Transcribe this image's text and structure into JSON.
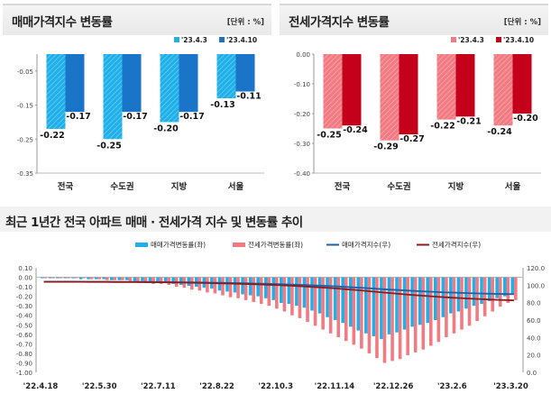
{
  "panels": {
    "left": {
      "title": "매매가격지수 변동률",
      "unit": "[단위 : %]"
    },
    "right": {
      "title": "전세가격지수 변동률",
      "unit": "[단위 : %]"
    }
  },
  "bottom_title": "최근 1년간 전국 아파트 매매 · 전세가격 지수 및 변동률 추이",
  "colors": {
    "sale_prev": "#1fb0ea",
    "sale_curr": "#1a74c8",
    "jeonse_prev": "#f27a82",
    "jeonse_curr": "#c4001a",
    "sale_index_line": "#1f5fa6",
    "jeonse_index_line": "#8b1c1c"
  },
  "chart_data": [
    {
      "type": "bar",
      "title": "매매가격지수 변동률",
      "unit": "[단위 : %]",
      "categories": [
        "전국",
        "수도권",
        "지방",
        "서울"
      ],
      "series": [
        {
          "name": "'23.4.3",
          "values": [
            -0.22,
            -0.25,
            -0.2,
            -0.13
          ]
        },
        {
          "name": "'23.4.10",
          "values": [
            -0.17,
            -0.17,
            -0.17,
            -0.11
          ]
        }
      ],
      "ylim": [
        -0.35,
        0.0
      ],
      "yticks": [
        "-0.05",
        "-0.15",
        "-0.25",
        "-0.35"
      ],
      "legend": "top-right"
    },
    {
      "type": "bar",
      "title": "전세가격지수 변동률",
      "unit": "[단위 : %]",
      "categories": [
        "전국",
        "수도권",
        "지방",
        "서울"
      ],
      "series": [
        {
          "name": "'23.4.3",
          "values": [
            -0.25,
            -0.29,
            -0.22,
            -0.24
          ]
        },
        {
          "name": "'23.4.10",
          "values": [
            -0.24,
            -0.27,
            -0.21,
            -0.2
          ]
        }
      ],
      "ylim": [
        -0.4,
        0.0
      ],
      "yticks": [
        "0.00",
        "-0.10",
        "-0.20",
        "-0.30",
        "-0.40"
      ],
      "legend": "top-right"
    },
    {
      "type": "bar",
      "title": "최근 1년간 전국 아파트 매매 · 전세가격 지수 및 변동률 추이",
      "x_labels": [
        "'22.4.18",
        "'22.5.30",
        "'22.7.11",
        "'22.8.22",
        "'22.10.3",
        "'22.11.14",
        "'22.12.26",
        "'23.2.6",
        "'23.3.20"
      ],
      "series": [
        {
          "name": "매매가격변동률(좌)",
          "axis": "left",
          "kind": "bar",
          "values": [
            -0.01,
            -0.01,
            -0.01,
            -0.01,
            -0.01,
            -0.02,
            -0.02,
            -0.02,
            -0.02,
            -0.03,
            -0.03,
            -0.03,
            -0.04,
            -0.04,
            -0.05,
            -0.05,
            -0.06,
            -0.07,
            -0.08,
            -0.09,
            -0.1,
            -0.11,
            -0.12,
            -0.14,
            -0.15,
            -0.16,
            -0.18,
            -0.19,
            -0.2,
            -0.22,
            -0.24,
            -0.27,
            -0.28,
            -0.3,
            -0.32,
            -0.35,
            -0.38,
            -0.42,
            -0.45,
            -0.48,
            -0.52,
            -0.56,
            -0.59,
            -0.62,
            -0.65,
            -0.6,
            -0.58,
            -0.55,
            -0.52,
            -0.5,
            -0.48,
            -0.45,
            -0.42,
            -0.38,
            -0.36,
            -0.33,
            -0.3,
            -0.28,
            -0.25,
            -0.22,
            -0.2,
            -0.17
          ]
        },
        {
          "name": "전세가격변동률(좌)",
          "axis": "left",
          "kind": "bar",
          "values": [
            -0.01,
            -0.01,
            -0.01,
            -0.01,
            -0.01,
            -0.01,
            -0.02,
            -0.02,
            -0.03,
            -0.03,
            -0.03,
            -0.04,
            -0.05,
            -0.06,
            -0.07,
            -0.07,
            -0.08,
            -0.1,
            -0.11,
            -0.13,
            -0.14,
            -0.16,
            -0.17,
            -0.19,
            -0.21,
            -0.22,
            -0.24,
            -0.26,
            -0.28,
            -0.3,
            -0.33,
            -0.36,
            -0.4,
            -0.43,
            -0.47,
            -0.51,
            -0.55,
            -0.59,
            -0.63,
            -0.67,
            -0.71,
            -0.75,
            -0.8,
            -0.85,
            -0.9,
            -0.88,
            -0.86,
            -0.82,
            -0.79,
            -0.76,
            -0.72,
            -0.68,
            -0.63,
            -0.59,
            -0.55,
            -0.51,
            -0.46,
            -0.41,
            -0.36,
            -0.31,
            -0.27,
            -0.24
          ]
        },
        {
          "name": "매매가격지수(우)",
          "axis": "right",
          "kind": "line",
          "values": [
            104.1,
            104.1,
            104.1,
            104.1,
            104.1,
            104.0,
            104.0,
            104.0,
            104.0,
            103.9,
            103.9,
            103.9,
            103.8,
            103.8,
            103.7,
            103.6,
            103.5,
            103.4,
            103.3,
            103.2,
            103.1,
            103.0,
            102.8,
            102.7,
            102.5,
            102.4,
            102.2,
            102.0,
            101.8,
            101.6,
            101.4,
            101.1,
            100.8,
            100.5,
            100.2,
            99.8,
            99.4,
            99.0,
            98.6,
            98.1,
            97.6,
            97.1,
            96.6,
            96.0,
            95.4,
            94.9,
            94.4,
            93.9,
            93.4,
            93.0,
            92.6,
            92.2,
            91.8,
            91.5,
            91.2,
            90.9,
            90.6,
            90.4,
            90.2,
            90.0,
            89.8,
            89.7
          ]
        },
        {
          "name": "전세가격지수(우)",
          "axis": "right",
          "kind": "line",
          "values": [
            103.9,
            103.9,
            103.9,
            103.9,
            103.9,
            103.9,
            103.8,
            103.8,
            103.8,
            103.7,
            103.7,
            103.6,
            103.6,
            103.5,
            103.4,
            103.3,
            103.2,
            103.1,
            103.0,
            102.8,
            102.7,
            102.5,
            102.3,
            102.1,
            101.9,
            101.7,
            101.4,
            101.2,
            100.9,
            100.6,
            100.2,
            99.8,
            99.4,
            99.0,
            98.5,
            98.0,
            97.4,
            96.8,
            96.2,
            95.5,
            94.8,
            94.1,
            93.3,
            92.5,
            91.7,
            90.9,
            90.1,
            89.4,
            88.7,
            88.0,
            87.4,
            86.8,
            86.2,
            85.7,
            85.2,
            84.7,
            84.3,
            83.9,
            83.5,
            83.2,
            82.9,
            82.6
          ]
        }
      ],
      "y_left": {
        "ylim": [
          -1.0,
          0.1
        ],
        "ticks": [
          "0.10",
          "0.00",
          "-0.10",
          "-0.20",
          "-0.30",
          "-0.40",
          "-0.50",
          "-0.60",
          "-0.70",
          "-0.80",
          "-0.90",
          "-1.00"
        ]
      },
      "y_right": {
        "ylim": [
          0.0,
          120.0
        ],
        "ticks": [
          "120.0",
          "100.0",
          "80.0",
          "60.0",
          "40.0",
          "20.0",
          "0.0"
        ]
      },
      "legend": "top"
    }
  ]
}
